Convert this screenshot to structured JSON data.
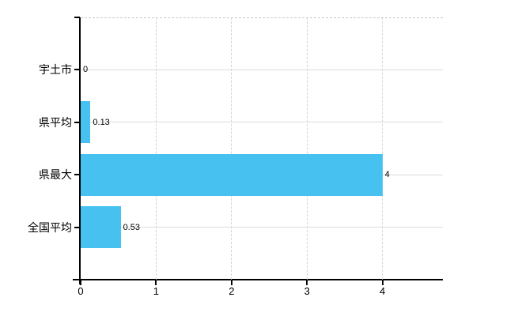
{
  "chart_data": {
    "type": "bar",
    "orientation": "horizontal",
    "title": "",
    "xlabel": "",
    "ylabel": "",
    "categories": [
      "宇土市",
      "県平均",
      "県最大",
      "全国平均"
    ],
    "values": [
      0,
      0.13,
      4,
      0.53
    ],
    "value_labels": [
      "0",
      "0.13",
      "4",
      "0.53"
    ],
    "x_ticks": [
      0,
      1,
      2,
      3,
      4
    ],
    "x_tick_labels": [
      "0",
      "1",
      "2",
      "3",
      "4"
    ],
    "xlim": [
      0,
      4.8
    ],
    "grid": true,
    "legend": false,
    "bar_color": "#47C2F0",
    "axis_color": "#000000",
    "gridline_h_color": "#d7ded7",
    "gridline_v_color": "#cbd3cb",
    "plot_top_border_color": "#c9c9cf",
    "background_color": "#ffffff"
  }
}
